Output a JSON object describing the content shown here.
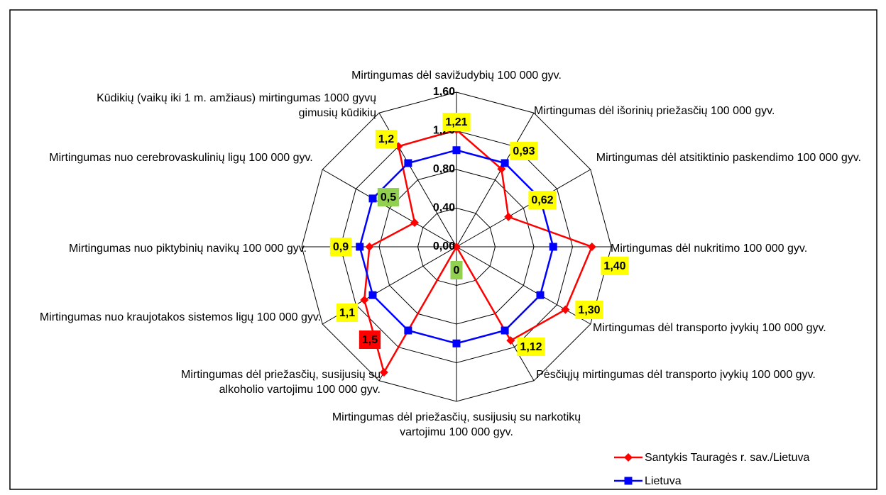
{
  "chart_data": {
    "type": "radar",
    "categories": [
      "Mirtingumas  dėl savižudybių 100 000 gyv.",
      "Mirtingumas dėl išorinių priežasčių 100 000 gyv.",
      "Mirtingumas dėl atsitiktinio paskendimo  100 000 gyv.",
      "Mirtingumas dėl nukritimo 100 000 gyv.",
      "Mirtingumas dėl transporto įvykių 100 000 gyv.",
      "Pėsčiųjų mirtingumas dėl transporto įvykių 100 000 gyv.",
      "Mirtingumas dėl priežasčių, susijusių su narkotikų vartojimu 100 000 gyv.",
      "Mirtingumas dėl priežasčių, susijusių su alkoholio vartojimu 100 000 gyv.",
      "Mirtingumas nuo kraujotakos sistemos ligų 100 000 gyv.",
      "Mirtingumas nuo piktybinių navikų 100 000 gyv.",
      "Mirtingumas nuo cerebrovaskulinių ligų 100 000 gyv.",
      "Kūdikių (vaikų iki 1 m. amžiaus) mirtingumas 1000 gyvų gimusių kūdikių"
    ],
    "series": [
      {
        "name": "Santykis Tauragės r. sav./Lietuva",
        "color": "#ff0000",
        "marker": "diamond",
        "values": [
          1.21,
          0.93,
          0.62,
          1.4,
          1.3,
          1.12,
          0,
          1.5,
          1.1,
          0.9,
          0.5,
          1.2
        ],
        "value_labels": [
          "1,21",
          "0,93",
          "0,62",
          "1,40",
          "1,30",
          "1,12",
          "0",
          "1,5",
          "1,1",
          "0,9",
          "0,5",
          "1,2"
        ],
        "value_label_colors": [
          "#ffff00",
          "#ffff00",
          "#ffff00",
          "#ffff00",
          "#ffff00",
          "#ffff00",
          "#92d050",
          "#ff0000",
          "#ffff00",
          "#ffff00",
          "#92d050",
          "#ffff00"
        ]
      },
      {
        "name": "Lietuva",
        "color": "#0000ff",
        "marker": "square",
        "values": [
          1,
          1,
          1,
          1,
          1,
          1,
          1,
          1,
          1,
          1,
          1,
          1
        ]
      }
    ],
    "rlim": [
      0,
      1.6
    ],
    "rticks": [
      {
        "value": 0,
        "label": "0,00"
      },
      {
        "value": 0.4,
        "label": "0,40"
      },
      {
        "value": 0.8,
        "label": "0,80"
      },
      {
        "value": 1.2,
        "label": "1,20"
      },
      {
        "value": 1.6,
        "label": "1,60"
      }
    ],
    "legend": "bottom-right"
  }
}
